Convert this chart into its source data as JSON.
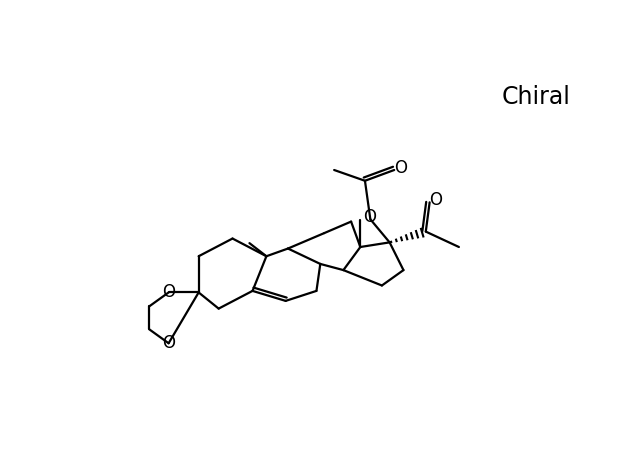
{
  "background_color": "#ffffff",
  "line_color": "#000000",
  "line_width": 1.6,
  "label_fontsize": 12,
  "chiral_label": "Chiral",
  "chiral_fontsize": 17,
  "figsize": [
    6.4,
    4.67
  ],
  "dpi": 100,
  "xlim": [
    0,
    640
  ],
  "ylim": [
    0,
    467
  ]
}
